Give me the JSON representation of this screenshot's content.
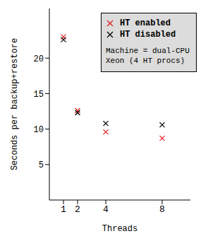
{
  "chart_data": {
    "type": "scatter",
    "x_label": "Threads",
    "y_label": "Seconds per backup+restore",
    "x": [
      1,
      2,
      4,
      8
    ],
    "xlim": [
      0,
      10
    ],
    "xticks": [
      1,
      2,
      4,
      8
    ],
    "ylim": [
      0,
      27
    ],
    "yticks": [
      5,
      10,
      15,
      20
    ],
    "grid": false,
    "legend": "upper right",
    "marker": "x",
    "annotation": "Machine = dual-CPU Xeon (4 HT procs)",
    "series": [
      {
        "name": "HT enabled",
        "color": "#e02020",
        "values": [
          23.0,
          12.6,
          9.6,
          8.7
        ]
      },
      {
        "name": "HT disabled",
        "color": "#000000",
        "values": [
          22.6,
          12.3,
          10.8,
          10.6
        ]
      }
    ]
  }
}
